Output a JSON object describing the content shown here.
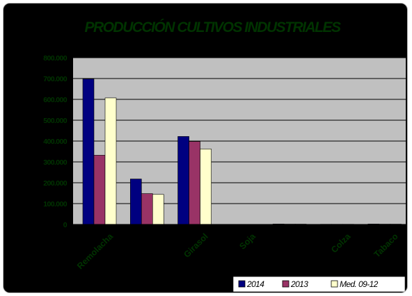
{
  "chart_data": {
    "type": "bar",
    "title": "PRODUCCIÓN CULTIVOS INDUSTRIALES",
    "xlabel": "",
    "ylabel": "",
    "ylim": [
      0,
      800000
    ],
    "y_ticks": [
      "0",
      "100.000",
      "200.000",
      "300.000",
      "400.000",
      "500.000",
      "600.000",
      "700.000",
      "800.000"
    ],
    "grid": true,
    "legend_position": "bottom-right",
    "categories": [
      "Remolacha",
      "",
      "Girasol",
      "Soja",
      "",
      "Colza",
      "Tabaco"
    ],
    "series": [
      {
        "name": "2014",
        "color": "#000080",
        "values": [
          698000,
          218000,
          422000,
          0,
          2000,
          1000,
          2000
        ]
      },
      {
        "name": "2013",
        "color": "#993366",
        "values": [
          332000,
          148000,
          398000,
          0,
          1500,
          1000,
          1500
        ]
      },
      {
        "name": "Med. 09-12",
        "color": "#ffffcc",
        "values": [
          607000,
          144000,
          362000,
          0,
          1500,
          1000,
          1500
        ]
      }
    ],
    "colors": {
      "background": "#000000",
      "plot_area": "#c0c0c0",
      "gridline": "#000000",
      "title": "#003300",
      "axis_labels": "#003300",
      "legend_box": "#ffffff"
    }
  }
}
